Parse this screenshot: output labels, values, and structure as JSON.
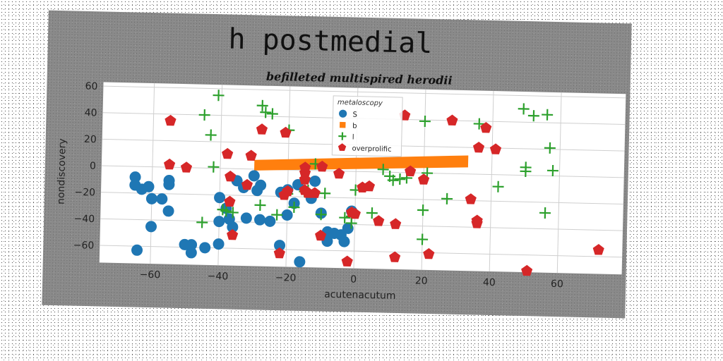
{
  "chart_data": {
    "type": "scatter",
    "title": "h postmedial",
    "subtitle": "befilleted multispired herodii",
    "xlabel": "acutenacutum",
    "ylabel": "nondiscovery",
    "xlim": [
      -75,
      79
    ],
    "ylim": [
      -73,
      63
    ],
    "xticks": [
      -60,
      -40,
      -20,
      0,
      20,
      40,
      60
    ],
    "yticks": [
      -60,
      -40,
      -20,
      0,
      20,
      40,
      60
    ],
    "grid": true,
    "legend": {
      "title": "metaloscopy",
      "placement": "top-center",
      "entries": [
        "S",
        "b",
        "l",
        "overprolific"
      ]
    },
    "series": [
      {
        "name": "S",
        "marker": "circle",
        "color": "#1f77b4",
        "points": [
          [
            -65,
            -8
          ],
          [
            -65,
            -14
          ],
          [
            -63,
            -17
          ],
          [
            -61,
            -15
          ],
          [
            -60,
            -24
          ],
          [
            -57,
            -24
          ],
          [
            -55,
            -33
          ],
          [
            -55,
            -13
          ],
          [
            -55,
            -10
          ],
          [
            -60,
            -45
          ],
          [
            -64,
            -63
          ],
          [
            -50,
            -58
          ],
          [
            -48,
            -64
          ],
          [
            -48,
            -58
          ],
          [
            -44,
            -60
          ],
          [
            -40,
            -57
          ],
          [
            -40,
            -40
          ],
          [
            -40,
            -22
          ],
          [
            -38,
            -30
          ],
          [
            -37,
            -38
          ],
          [
            -36,
            -44
          ],
          [
            -35,
            -9
          ],
          [
            -33,
            -14
          ],
          [
            -32,
            -37
          ],
          [
            -30,
            -5
          ],
          [
            -29,
            -16
          ],
          [
            -28,
            -12
          ],
          [
            -28,
            -38
          ],
          [
            -25,
            -39
          ],
          [
            -22,
            -17
          ],
          [
            -20,
            -15
          ],
          [
            -20,
            -34
          ],
          [
            -18,
            -25
          ],
          [
            -17,
            -11
          ],
          [
            -13,
            -21
          ],
          [
            -12,
            -8
          ],
          [
            -10,
            -32
          ],
          [
            -8,
            -53
          ],
          [
            -8,
            -46
          ],
          [
            -6,
            -47
          ],
          [
            -4,
            -48
          ],
          [
            -3,
            -53
          ],
          [
            -2,
            -43
          ],
          [
            -1,
            -30
          ],
          [
            -16,
            -69
          ],
          [
            -22,
            -57
          ]
        ]
      },
      {
        "name": "b",
        "marker": "square",
        "color": "#ff7f0e",
        "band": {
          "x": [
            -30,
            33
          ],
          "y_start": [
            -1,
            7
          ],
          "y_end": [
            5,
            14
          ]
        }
      },
      {
        "name": "l",
        "marker": "plus",
        "color": "#2ca02c",
        "points": [
          [
            -41,
            55
          ],
          [
            -45,
            40
          ],
          [
            -43,
            25
          ],
          [
            -28,
            48
          ],
          [
            -27,
            43
          ],
          [
            -25,
            42
          ],
          [
            -20,
            30
          ],
          [
            -20,
            -18
          ],
          [
            -15,
            -16
          ],
          [
            -14,
            -15
          ],
          [
            -18,
            -28
          ],
          [
            -23,
            -34
          ],
          [
            -28,
            -27
          ],
          [
            -36,
            -33
          ],
          [
            -38,
            -32
          ],
          [
            -39,
            -31
          ],
          [
            -45,
            -41
          ],
          [
            -42,
            1
          ],
          [
            -3,
            -35
          ],
          [
            -1,
            -39
          ],
          [
            -1,
            -34
          ],
          [
            0,
            -14
          ],
          [
            5,
            -31
          ],
          [
            8,
            2
          ],
          [
            10,
            -3
          ],
          [
            11,
            -6
          ],
          [
            13,
            -5
          ],
          [
            15,
            -4
          ],
          [
            20,
            39
          ],
          [
            20,
            -28
          ],
          [
            21,
            0
          ],
          [
            20,
            -50
          ],
          [
            27,
            -19
          ],
          [
            36,
            38
          ],
          [
            42,
            -9
          ],
          [
            49,
            50
          ],
          [
            50,
            3
          ],
          [
            50,
            6
          ],
          [
            52,
            45
          ],
          [
            56,
            46
          ],
          [
            56,
            -28
          ],
          [
            57,
            21
          ],
          [
            58,
            4
          ],
          [
            -10,
            -33
          ],
          [
            -12,
            5
          ],
          [
            -9,
            -17
          ]
        ]
      },
      {
        "name": "overprolific",
        "marker": "pentagon",
        "color": "#d62728",
        "points": [
          [
            -55,
            35
          ],
          [
            -55,
            2
          ],
          [
            -50,
            0
          ],
          [
            -38,
            11
          ],
          [
            -37,
            -6
          ],
          [
            -37,
            -25
          ],
          [
            -36,
            -50
          ],
          [
            -32,
            -12
          ],
          [
            -31,
            10
          ],
          [
            -28,
            30
          ],
          [
            -21,
            28
          ],
          [
            -21,
            -19
          ],
          [
            -15,
            2
          ],
          [
            -15,
            -2
          ],
          [
            -15,
            -7
          ],
          [
            -15,
            -15
          ],
          [
            -12,
            -17
          ],
          [
            -10,
            -49
          ],
          [
            -10,
            3
          ],
          [
            -5,
            -2
          ],
          [
            -2,
            -68
          ],
          [
            -1,
            -31
          ],
          [
            0,
            -32
          ],
          [
            2,
            -12
          ],
          [
            4,
            -11
          ],
          [
            7,
            -37
          ],
          [
            12,
            -39
          ],
          [
            14,
            43
          ],
          [
            16,
            1
          ],
          [
            20,
            -5
          ],
          [
            22,
            -61
          ],
          [
            12,
            -64
          ],
          [
            28,
            40
          ],
          [
            34,
            -19
          ],
          [
            36,
            -37
          ],
          [
            36,
            -35
          ],
          [
            36,
            20
          ],
          [
            38,
            35
          ],
          [
            41,
            19
          ],
          [
            51,
            -72
          ],
          [
            72,
            -55
          ],
          [
            -22,
            -63
          ],
          [
            -14,
            -17
          ],
          [
            -20,
            -16
          ]
        ]
      }
    ]
  }
}
